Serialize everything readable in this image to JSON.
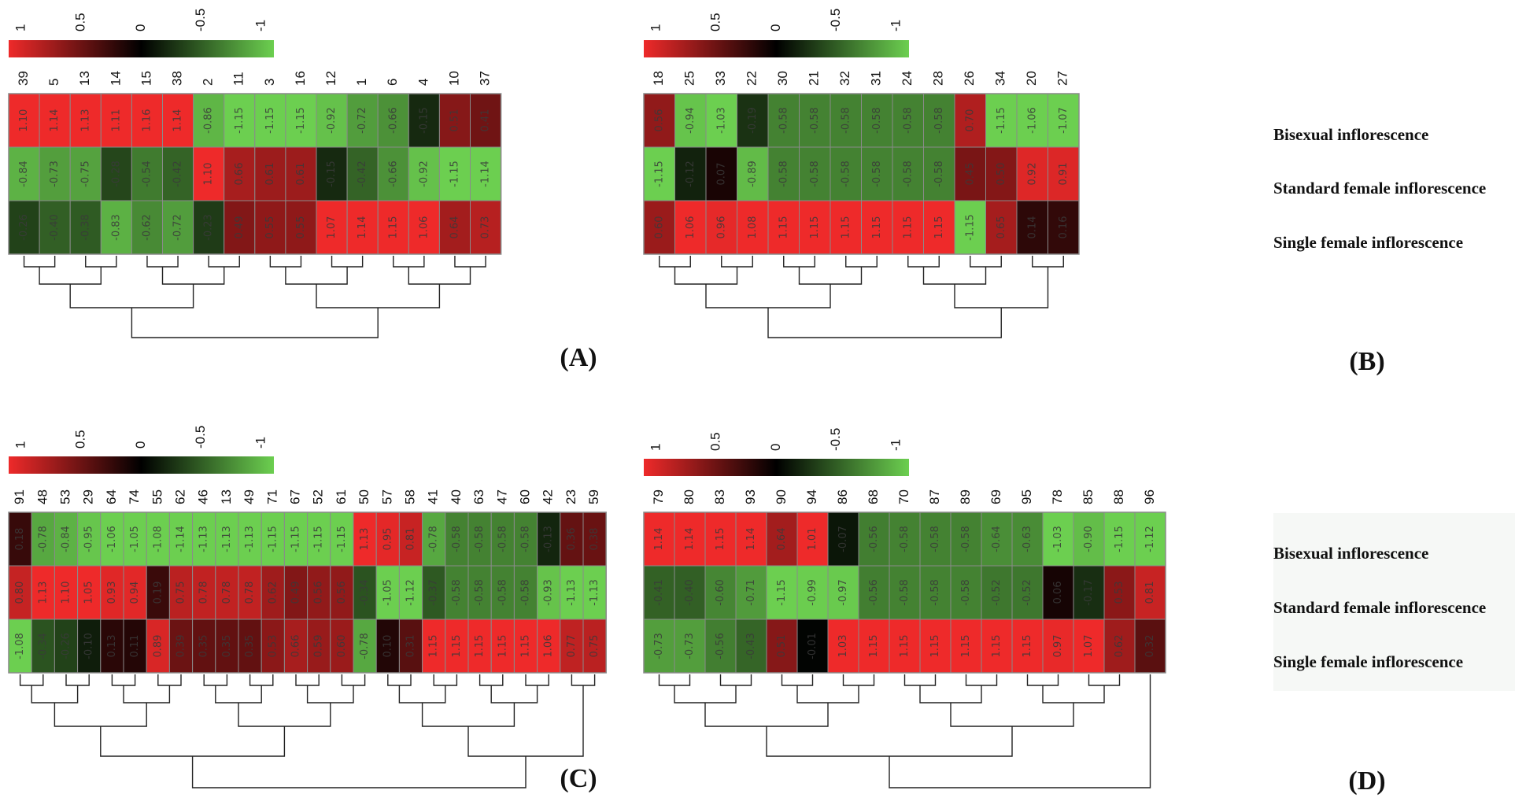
{
  "figure": {
    "row_labels": [
      "Bisexual inflorescence",
      "Standard female inflorescence",
      "Single female inflorescence"
    ],
    "color_scale": {
      "ticks": [
        "1",
        "0.5",
        "0",
        "-0.5",
        "-1"
      ],
      "high": "#ee2a2a",
      "mid": "#000000",
      "low": "#6ccf50"
    }
  },
  "chart_data": [
    {
      "type": "heatmap",
      "panel_label": "(A)",
      "columns": [
        "39",
        "5",
        "13",
        "14",
        "15",
        "38",
        "2",
        "11",
        "3",
        "16",
        "12",
        "1",
        "6",
        "4",
        "10",
        "37"
      ],
      "values": [
        [
          1.1,
          1.14,
          1.13,
          1.11,
          1.16,
          1.14,
          -0.86,
          -1.15,
          -1.15,
          -1.15,
          -0.92,
          -0.72,
          -0.66,
          -0.15,
          0.51,
          0.41
        ],
        [
          -0.84,
          -0.73,
          -0.75,
          -0.28,
          -0.54,
          -0.42,
          1.1,
          0.66,
          0.61,
          0.61,
          -0.15,
          -0.42,
          -0.66,
          -0.92,
          -1.15,
          -1.14
        ],
        [
          -0.26,
          -0.4,
          -0.38,
          -0.83,
          -0.62,
          -0.72,
          -0.23,
          0.49,
          0.55,
          0.55,
          1.07,
          1.14,
          1.15,
          1.06,
          0.64,
          0.73
        ]
      ]
    },
    {
      "type": "heatmap",
      "panel_label": "(B)",
      "columns": [
        "18",
        "25",
        "33",
        "22",
        "30",
        "21",
        "32",
        "31",
        "24",
        "28",
        "26",
        "34",
        "20",
        "27"
      ],
      "values": [
        [
          0.56,
          -0.94,
          -1.03,
          -0.19,
          -0.58,
          -0.58,
          -0.58,
          -0.58,
          -0.58,
          -0.58,
          0.7,
          -1.15,
          -1.06,
          -1.07
        ],
        [
          -1.15,
          -0.12,
          0.07,
          -0.89,
          -0.58,
          -0.58,
          -0.58,
          -0.58,
          -0.58,
          -0.58,
          0.45,
          0.5,
          0.92,
          0.91
        ],
        [
          0.6,
          1.06,
          0.96,
          1.08,
          1.15,
          1.15,
          1.15,
          1.15,
          1.15,
          1.15,
          -1.15,
          0.65,
          0.14,
          0.16
        ]
      ]
    },
    {
      "type": "heatmap",
      "panel_label": "(C)",
      "columns": [
        "91",
        "48",
        "53",
        "29",
        "64",
        "74",
        "55",
        "62",
        "46",
        "13",
        "49",
        "71",
        "67",
        "52",
        "61",
        "50",
        "57",
        "58",
        "41",
        "40",
        "63",
        "47",
        "60",
        "42",
        "23",
        "59"
      ],
      "values": [
        [
          0.18,
          -0.78,
          -0.84,
          -0.95,
          -1.06,
          -1.05,
          -1.08,
          -1.14,
          -1.13,
          -1.13,
          -1.13,
          -1.15,
          -1.15,
          -1.15,
          -1.15,
          1.13,
          0.95,
          0.81,
          -0.78,
          -0.58,
          -0.58,
          -0.58,
          -0.58,
          -0.13,
          0.36,
          0.38
        ],
        [
          0.8,
          1.13,
          1.1,
          1.05,
          0.93,
          0.94,
          0.19,
          0.75,
          0.78,
          0.78,
          0.78,
          0.62,
          0.49,
          0.56,
          0.56,
          -0.34,
          -1.05,
          -1.12,
          -0.37,
          -0.58,
          -0.58,
          -0.58,
          -0.58,
          -0.93,
          -1.13,
          -1.13
        ],
        [
          -1.08,
          -0.34,
          -0.26,
          -0.1,
          0.13,
          0.11,
          0.89,
          0.39,
          0.35,
          0.35,
          0.35,
          0.53,
          0.66,
          0.59,
          0.6,
          -0.78,
          0.1,
          0.31,
          1.15,
          1.15,
          1.15,
          1.15,
          1.15,
          1.06,
          0.77,
          0.75
        ]
      ]
    },
    {
      "type": "heatmap",
      "panel_label": "(D)",
      "columns": [
        "79",
        "80",
        "83",
        "93",
        "90",
        "94",
        "86",
        "68",
        "70",
        "87",
        "89",
        "69",
        "95",
        "78",
        "85",
        "88",
        "96"
      ],
      "values": [
        [
          1.14,
          1.14,
          1.15,
          1.14,
          0.64,
          1.01,
          -0.07,
          -0.56,
          -0.58,
          -0.58,
          -0.58,
          -0.64,
          -0.63,
          -1.03,
          -0.9,
          -1.15,
          -1.12
        ],
        [
          -0.41,
          -0.4,
          -0.6,
          -0.71,
          -1.15,
          -0.99,
          -0.97,
          -0.56,
          -0.58,
          -0.58,
          -0.58,
          -0.52,
          -0.52,
          0.06,
          -0.17,
          0.53,
          0.81
        ],
        [
          -0.73,
          -0.73,
          -0.56,
          -0.43,
          0.51,
          -0.01,
          1.03,
          1.15,
          1.15,
          1.15,
          1.15,
          1.15,
          1.15,
          0.97,
          1.07,
          0.62,
          0.32
        ]
      ]
    }
  ]
}
